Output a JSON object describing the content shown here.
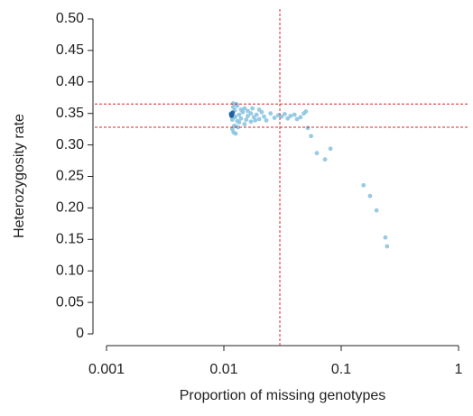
{
  "chart_data": {
    "type": "scatter",
    "x_label": "Proportion of missing genotypes",
    "y_label": "Heterozygosity rate",
    "x_log": true,
    "xlim": [
      0.001,
      1
    ],
    "xticks": [
      0.001,
      0.01,
      0.1,
      1
    ],
    "ylim": [
      0,
      0.5
    ],
    "yticks": [
      0,
      0.05,
      {
        "value": 0.1,
        "label": "0.10"
      },
      0.15,
      {
        "value": 0.2,
        "label": "0.20"
      },
      0.25,
      {
        "value": 0.3,
        "label": "0.30"
      },
      0.35,
      {
        "value": 0.4,
        "label": "0.40"
      },
      0.45,
      {
        "value": 0.5,
        "label": "0.50"
      }
    ],
    "threshold_color": "#d62728",
    "vlines": [
      0.03
    ],
    "hlines": [
      0.328,
      0.365
    ],
    "series": [
      {
        "color": "#8cc4e0",
        "x": [
          0.0115,
          0.0118,
          0.012,
          0.0122,
          0.0125,
          0.0118,
          0.0121,
          0.0124,
          0.0128,
          0.013,
          0.0135,
          0.014,
          0.0145,
          0.015,
          0.0155,
          0.016,
          0.017,
          0.018,
          0.019,
          0.02,
          0.021,
          0.022,
          0.023,
          0.025,
          0.027,
          0.029,
          0.031,
          0.033,
          0.035,
          0.037,
          0.04,
          0.042,
          0.045,
          0.048,
          0.05,
          0.0125,
          0.013,
          0.0135,
          0.014,
          0.015,
          0.016,
          0.017,
          0.0175,
          0.0185,
          0.02,
          0.012,
          0.0126,
          0.0132,
          0.0116,
          0.0119,
          0.0123,
          0.0519,
          0.0553,
          0.062,
          0.0728,
          0.081,
          0.155,
          0.176,
          0.2,
          0.238,
          0.246
        ],
        "values": [
          0.35,
          0.34,
          0.36,
          0.33,
          0.345,
          0.325,
          0.32,
          0.355,
          0.365,
          0.338,
          0.348,
          0.342,
          0.352,
          0.358,
          0.34,
          0.346,
          0.35,
          0.344,
          0.348,
          0.341,
          0.352,
          0.345,
          0.339,
          0.35,
          0.343,
          0.347,
          0.345,
          0.349,
          0.342,
          0.346,
          0.348,
          0.341,
          0.344,
          0.35,
          0.353,
          0.33,
          0.362,
          0.336,
          0.356,
          0.333,
          0.354,
          0.337,
          0.358,
          0.339,
          0.356,
          0.366,
          0.318,
          0.328,
          0.348,
          0.352,
          0.344,
          0.327,
          0.314,
          0.287,
          0.277,
          0.294,
          0.236,
          0.219,
          0.196,
          0.153,
          0.139
        ]
      },
      {
        "color": "#1f5f9e",
        "x": [
          0.0115,
          0.0117,
          0.0119,
          0.0116
        ],
        "values": [
          0.349,
          0.347,
          0.351,
          0.346
        ]
      }
    ]
  }
}
